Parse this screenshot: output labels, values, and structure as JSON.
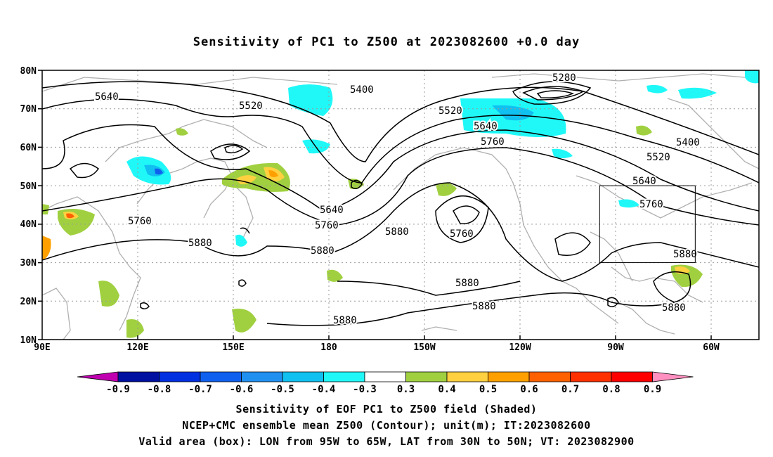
{
  "title": "Sensitivity of PC1 to Z500 at 2023082600 +0.0 day",
  "lat_ticks": [
    "80N",
    "70N",
    "60N",
    "50N",
    "40N",
    "30N",
    "20N",
    "10N"
  ],
  "lon_ticks": [
    "90E",
    "120E",
    "150E",
    "180",
    "150W",
    "120W",
    "90W",
    "60W"
  ],
  "colorbar": {
    "labels": [
      "-0.9",
      "-0.8",
      "-0.7",
      "-0.6",
      "-0.5",
      "-0.4",
      "-0.3",
      "0.3",
      "0.4",
      "0.5",
      "0.6",
      "0.7",
      "0.8",
      "0.9"
    ],
    "colors": [
      "#c000b0",
      "#0010a0",
      "#0030e0",
      "#1060f0",
      "#2090f0",
      "#10c0f0",
      "#20f8f8",
      "#ffffff",
      "#a0d040",
      "#ffd040",
      "#ffa000",
      "#ff6000",
      "#ff3000",
      "#ff0000",
      "#ff90c0"
    ]
  },
  "contour_labels": [
    "5640",
    "5520",
    "5400",
    "5280",
    "5520",
    "5640",
    "5760",
    "5400",
    "5520",
    "5640",
    "5760",
    "5760",
    "5640",
    "5760",
    "5880",
    "5880",
    "5760",
    "5880",
    "5880",
    "5880",
    "5880",
    "5880"
  ],
  "footer": {
    "line1": "Sensitivity of EOF PC1 to Z500 field (Shaded)",
    "line2": "NCEP+CMC ensemble mean Z500 (Contour); unit(m); IT:2023082600",
    "line3": "Valid area (box): LON from 95W to 65W, LAT from 30N to 50N; VT: 2023082900"
  },
  "valid_box": {
    "lon": [
      -95,
      -65
    ],
    "lat": [
      30,
      50
    ]
  }
}
